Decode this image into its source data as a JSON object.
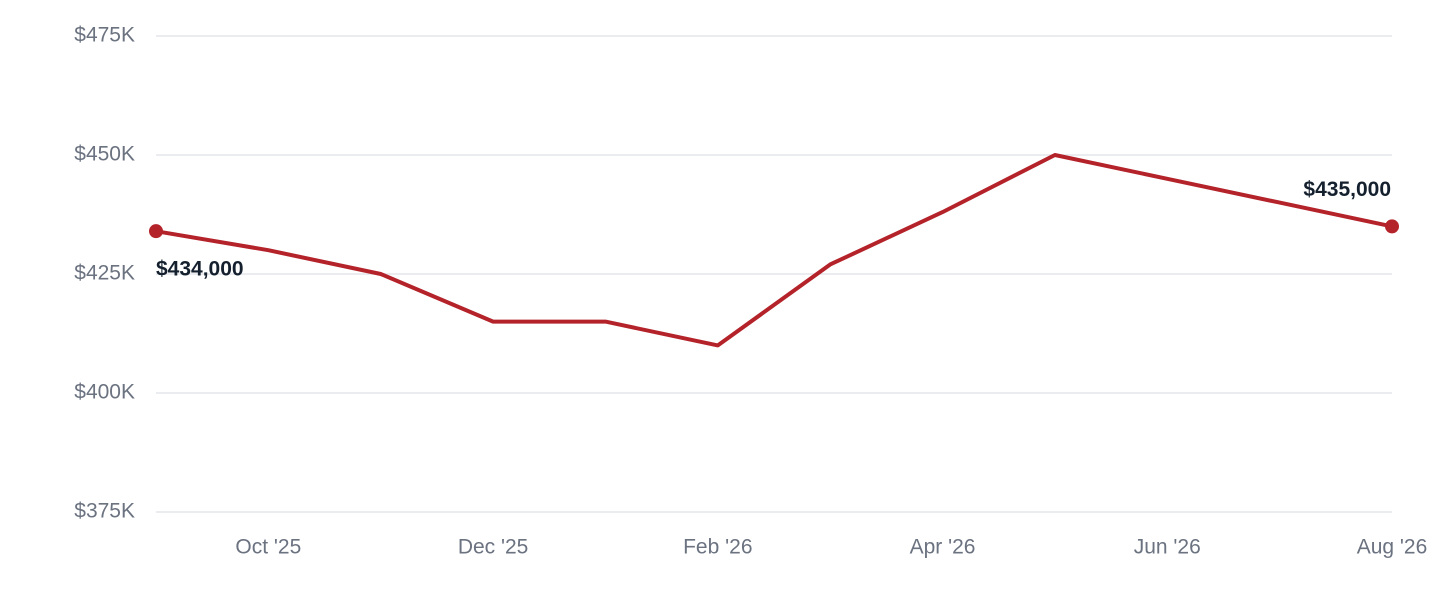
{
  "chart_data": {
    "type": "line",
    "categories": [
      null,
      "Oct '25",
      null,
      "Dec '25",
      null,
      "Feb '26",
      null,
      "Apr '26",
      null,
      "Jun '26",
      null,
      "Aug '26"
    ],
    "series": [
      {
        "color": "#b5232a",
        "values": [
          434000,
          430000,
          425000,
          415000,
          415000,
          410000,
          427000,
          438000,
          450000,
          445000,
          440000,
          435000
        ],
        "value_labels": [
          "$434,000",
          null,
          null,
          null,
          null,
          null,
          null,
          null,
          null,
          null,
          null,
          "$435,000"
        ]
      }
    ],
    "ylim": [
      375000,
      475000
    ],
    "yticks": [
      {
        "value": 375000,
        "label": "$375K"
      },
      {
        "value": 400000,
        "label": "$400K"
      },
      {
        "value": 425000,
        "label": "$425K"
      },
      {
        "value": 450000,
        "label": "$450K"
      },
      {
        "value": 475000,
        "label": "$475K"
      }
    ],
    "grid": true
  }
}
